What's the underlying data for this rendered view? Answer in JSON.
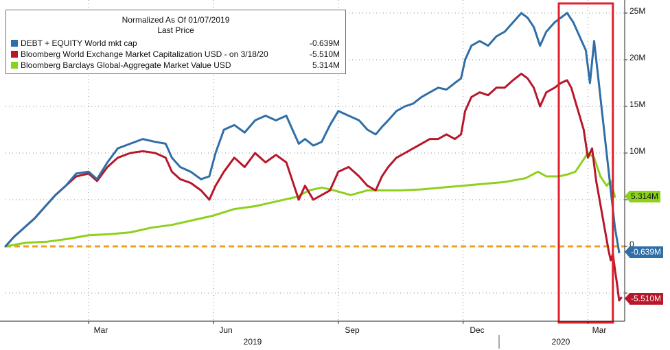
{
  "legend": {
    "title_line1": "Normalized As Of 01/07/2019",
    "title_line2": "Last Price",
    "entries": [
      {
        "label": "DEBT + EQUITY World mkt cap",
        "value": "-0.639M",
        "color": "#2f6ea6"
      },
      {
        "label": "Bloomberg World Exchange Market Capitalization USD -  on 3/18/20",
        "value": "-5.510M",
        "color": "#b8162a"
      },
      {
        "label": "Bloomberg Barclays Global-Aggregate Market Value USD",
        "value": "5.314M",
        "color": "#8dd11c"
      }
    ]
  },
  "axis": {
    "y_ticks": [
      "25M",
      "20M",
      "15M",
      "10M",
      "5M",
      "0"
    ],
    "x_months": [
      "Mar",
      "Jun",
      "Sep",
      "Dec",
      "Mar"
    ],
    "years": [
      "2019",
      "2020"
    ]
  },
  "tags": {
    "green": "5.314M",
    "blue": "-0.639M",
    "red": "-5.510M"
  },
  "chart_data": {
    "type": "line",
    "title": "Normalized As Of 01/07/2019",
    "subtitle": "Last Price",
    "xlabel": "",
    "ylabel": "",
    "ylim": [
      -7.9,
      25.5
    ],
    "y_ticks": [
      0,
      5,
      10,
      15,
      20,
      25
    ],
    "x_unit": "months since 2019-01-07",
    "x_range": [
      0,
      15.0
    ],
    "x_ticks": [
      {
        "label": "Mar",
        "x": 2.0
      },
      {
        "label": "Jun",
        "x": 5.0
      },
      {
        "label": "Sep",
        "x": 8.0
      },
      {
        "label": "Dec",
        "x": 11.0
      },
      {
        "label": "Mar",
        "x": 14.0
      }
    ],
    "reference_line": {
      "y": 0,
      "color": "#f0a020",
      "style": "dashed"
    },
    "highlight": {
      "x_from": 13.3,
      "x_to": 14.6,
      "color": "#e0202a"
    },
    "series": [
      {
        "name": "DEBT + EQUITY World mkt cap",
        "color": "#2f6ea6",
        "last_value": -0.639,
        "points": [
          [
            0,
            0
          ],
          [
            0.2,
            1.0
          ],
          [
            0.45,
            2.0
          ],
          [
            0.7,
            3.0
          ],
          [
            1.0,
            4.5
          ],
          [
            1.2,
            5.5
          ],
          [
            1.45,
            6.5
          ],
          [
            1.7,
            7.8
          ],
          [
            2.0,
            8.0
          ],
          [
            2.2,
            7.2
          ],
          [
            2.45,
            9.0
          ],
          [
            2.7,
            10.5
          ],
          [
            3.0,
            11.0
          ],
          [
            3.3,
            11.5
          ],
          [
            3.6,
            11.2
          ],
          [
            3.85,
            11.0
          ],
          [
            4.0,
            9.5
          ],
          [
            4.2,
            8.5
          ],
          [
            4.45,
            8.0
          ],
          [
            4.7,
            7.2
          ],
          [
            4.9,
            7.5
          ],
          [
            5.05,
            10.0
          ],
          [
            5.25,
            12.5
          ],
          [
            5.5,
            13.0
          ],
          [
            5.75,
            12.2
          ],
          [
            6.0,
            13.5
          ],
          [
            6.25,
            14.0
          ],
          [
            6.5,
            13.5
          ],
          [
            6.75,
            14.0
          ],
          [
            6.9,
            12.5
          ],
          [
            7.05,
            11.0
          ],
          [
            7.2,
            11.5
          ],
          [
            7.4,
            10.8
          ],
          [
            7.6,
            11.2
          ],
          [
            7.8,
            13.0
          ],
          [
            8.0,
            14.5
          ],
          [
            8.25,
            14.0
          ],
          [
            8.5,
            13.5
          ],
          [
            8.7,
            12.5
          ],
          [
            8.9,
            12.0
          ],
          [
            9.05,
            12.8
          ],
          [
            9.2,
            13.5
          ],
          [
            9.4,
            14.5
          ],
          [
            9.6,
            15.0
          ],
          [
            9.8,
            15.3
          ],
          [
            10.0,
            16.0
          ],
          [
            10.2,
            16.5
          ],
          [
            10.4,
            17.0
          ],
          [
            10.6,
            16.8
          ],
          [
            10.8,
            17.5
          ],
          [
            10.95,
            18.0
          ],
          [
            11.05,
            20.0
          ],
          [
            11.2,
            21.5
          ],
          [
            11.4,
            22.0
          ],
          [
            11.6,
            21.5
          ],
          [
            11.8,
            22.5
          ],
          [
            12.0,
            23.0
          ],
          [
            12.2,
            24.0
          ],
          [
            12.4,
            25.0
          ],
          [
            12.55,
            24.5
          ],
          [
            12.7,
            23.5
          ],
          [
            12.85,
            21.5
          ],
          [
            13.0,
            23.0
          ],
          [
            13.2,
            24.0
          ],
          [
            13.35,
            24.5
          ],
          [
            13.5,
            25.0
          ],
          [
            13.65,
            24.0
          ],
          [
            13.8,
            22.5
          ],
          [
            13.95,
            21.0
          ],
          [
            14.05,
            17.5
          ],
          [
            14.15,
            22.0
          ],
          [
            14.25,
            18.0
          ],
          [
            14.35,
            14.0
          ],
          [
            14.45,
            10.0
          ],
          [
            14.55,
            6.0
          ],
          [
            14.65,
            2.0
          ],
          [
            14.75,
            -0.639
          ]
        ]
      },
      {
        "name": "Bloomberg World Exchange Market Capitalization USD -  on 3/18/20",
        "color": "#b8162a",
        "last_value": -5.51,
        "points": [
          [
            0,
            0
          ],
          [
            0.2,
            1.0
          ],
          [
            0.45,
            2.0
          ],
          [
            0.7,
            3.0
          ],
          [
            1.0,
            4.5
          ],
          [
            1.2,
            5.5
          ],
          [
            1.45,
            6.5
          ],
          [
            1.7,
            7.5
          ],
          [
            2.0,
            7.8
          ],
          [
            2.2,
            7.0
          ],
          [
            2.45,
            8.5
          ],
          [
            2.7,
            9.5
          ],
          [
            3.0,
            10.0
          ],
          [
            3.3,
            10.2
          ],
          [
            3.6,
            10.0
          ],
          [
            3.85,
            9.5
          ],
          [
            4.0,
            8.0
          ],
          [
            4.2,
            7.2
          ],
          [
            4.45,
            6.8
          ],
          [
            4.7,
            6.0
          ],
          [
            4.9,
            5.0
          ],
          [
            5.05,
            6.5
          ],
          [
            5.25,
            8.0
          ],
          [
            5.5,
            9.5
          ],
          [
            5.75,
            8.5
          ],
          [
            6.0,
            10.0
          ],
          [
            6.25,
            9.0
          ],
          [
            6.5,
            9.8
          ],
          [
            6.75,
            9.0
          ],
          [
            6.9,
            7.0
          ],
          [
            7.05,
            5.0
          ],
          [
            7.2,
            6.5
          ],
          [
            7.4,
            5.0
          ],
          [
            7.6,
            5.5
          ],
          [
            7.8,
            6.0
          ],
          [
            8.0,
            8.0
          ],
          [
            8.25,
            8.5
          ],
          [
            8.5,
            7.5
          ],
          [
            8.7,
            6.5
          ],
          [
            8.9,
            6.0
          ],
          [
            9.05,
            7.5
          ],
          [
            9.2,
            8.5
          ],
          [
            9.4,
            9.5
          ],
          [
            9.6,
            10.0
          ],
          [
            9.8,
            10.5
          ],
          [
            10.0,
            11.0
          ],
          [
            10.2,
            11.5
          ],
          [
            10.4,
            11.5
          ],
          [
            10.6,
            12.0
          ],
          [
            10.8,
            11.5
          ],
          [
            10.95,
            12.0
          ],
          [
            11.05,
            14.5
          ],
          [
            11.2,
            16.0
          ],
          [
            11.4,
            16.5
          ],
          [
            11.6,
            16.2
          ],
          [
            11.8,
            17.0
          ],
          [
            12.0,
            17.0
          ],
          [
            12.2,
            17.8
          ],
          [
            12.4,
            18.5
          ],
          [
            12.55,
            18.0
          ],
          [
            12.7,
            17.0
          ],
          [
            12.85,
            15.0
          ],
          [
            13.0,
            16.5
          ],
          [
            13.2,
            17.0
          ],
          [
            13.35,
            17.5
          ],
          [
            13.5,
            17.8
          ],
          [
            13.6,
            17.0
          ],
          [
            13.7,
            15.5
          ],
          [
            13.8,
            14.0
          ],
          [
            13.9,
            12.5
          ],
          [
            14.0,
            9.5
          ],
          [
            14.1,
            10.5
          ],
          [
            14.2,
            7.0
          ],
          [
            14.3,
            4.5
          ],
          [
            14.4,
            2.0
          ],
          [
            14.5,
            -0.5
          ],
          [
            14.55,
            -1.5
          ],
          [
            14.6,
            -0.8
          ],
          [
            14.65,
            -2.5
          ],
          [
            14.7,
            -4.0
          ],
          [
            14.75,
            -5.8
          ],
          [
            14.8,
            -5.51
          ]
        ]
      },
      {
        "name": "Bloomberg Barclays Global-Aggregate Market Value USD",
        "color": "#8dd11c",
        "last_value": 5.314,
        "points": [
          [
            0,
            0
          ],
          [
            0.5,
            0.4
          ],
          [
            1.0,
            0.5
          ],
          [
            1.5,
            0.8
          ],
          [
            2.0,
            1.2
          ],
          [
            2.5,
            1.3
          ],
          [
            3.0,
            1.5
          ],
          [
            3.5,
            2.0
          ],
          [
            4.0,
            2.3
          ],
          [
            4.5,
            2.8
          ],
          [
            5.0,
            3.3
          ],
          [
            5.5,
            4.0
          ],
          [
            6.0,
            4.3
          ],
          [
            6.5,
            4.8
          ],
          [
            7.0,
            5.3
          ],
          [
            7.3,
            6.0
          ],
          [
            7.6,
            6.3
          ],
          [
            7.9,
            6.0
          ],
          [
            8.3,
            5.5
          ],
          [
            8.7,
            6.0
          ],
          [
            9.0,
            6.0
          ],
          [
            9.5,
            6.0
          ],
          [
            10.0,
            6.1
          ],
          [
            10.5,
            6.3
          ],
          [
            11.0,
            6.5
          ],
          [
            11.5,
            6.7
          ],
          [
            12.0,
            6.9
          ],
          [
            12.5,
            7.3
          ],
          [
            12.8,
            8.0
          ],
          [
            13.0,
            7.5
          ],
          [
            13.3,
            7.5
          ],
          [
            13.5,
            7.7
          ],
          [
            13.7,
            8.0
          ],
          [
            13.85,
            9.0
          ],
          [
            14.0,
            10.0
          ],
          [
            14.15,
            9.5
          ],
          [
            14.3,
            7.5
          ],
          [
            14.45,
            6.5
          ],
          [
            14.55,
            7.0
          ],
          [
            14.65,
            5.314
          ]
        ]
      }
    ]
  }
}
